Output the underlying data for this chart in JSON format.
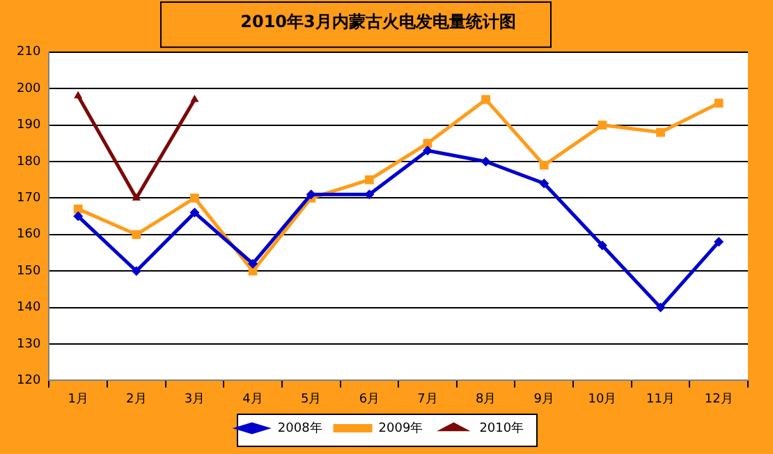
{
  "chart_data": {
    "type": "line",
    "title": "2010年3月内蒙古火电发电量统计图",
    "categories": [
      "1月",
      "2月",
      "3月",
      "4月",
      "5月",
      "6月",
      "7月",
      "8月",
      "9月",
      "10月",
      "11月",
      "12月"
    ],
    "series": [
      {
        "name": "2008年",
        "color": "#0000cc",
        "marker": "diamond",
        "values": [
          165,
          150,
          166,
          152,
          171,
          171,
          183,
          180,
          174,
          157,
          140,
          158
        ]
      },
      {
        "name": "2009年",
        "color": "#ff9c1a",
        "marker": "square",
        "values": [
          167,
          160,
          170,
          150,
          170,
          175,
          185,
          197,
          179,
          190,
          188,
          196
        ]
      },
      {
        "name": "2010年",
        "color": "#7a0a0a",
        "marker": "triangle",
        "values": [
          198,
          170,
          197,
          null,
          null,
          null,
          null,
          null,
          null,
          null,
          null,
          null
        ]
      }
    ],
    "ylim": [
      120,
      210
    ],
    "yticks": [
      120,
      130,
      140,
      150,
      160,
      170,
      180,
      190,
      200,
      210
    ],
    "grid": "y",
    "legend": "bottom",
    "line_style": "solid"
  }
}
